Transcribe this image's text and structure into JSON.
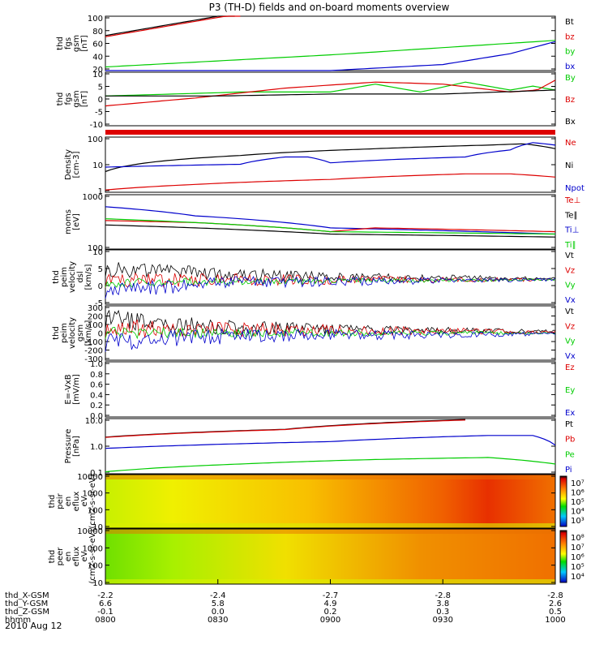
{
  "title": "P3 (TH-D) fields and on-board moments overview",
  "colors": {
    "black": "#000000",
    "red": "#dd0000",
    "green": "#00cc00",
    "blue": "#0000cc"
  },
  "chart_data": [
    {
      "type": "line",
      "ylabel": [
        "thd",
        "fgs",
        "gsm",
        "[nT]"
      ],
      "yticks": [
        "100",
        "80",
        "60",
        "40",
        "20"
      ],
      "ylim": [
        10,
        100
      ],
      "legend": [
        "Bt",
        "bz",
        "by",
        "bx"
      ],
      "series": [
        {
          "name": "Bt",
          "color": "black",
          "x": [
            0,
            0.25,
            0.29
          ],
          "y": [
            68,
            100,
            105
          ]
        },
        {
          "name": "bz",
          "color": "red",
          "x": [
            0,
            0.25,
            0.3
          ],
          "y": [
            66,
            98,
            104
          ]
        },
        {
          "name": "by",
          "color": "green",
          "x": [
            0,
            0.25,
            0.5,
            0.75,
            1
          ],
          "y": [
            16,
            26,
            36,
            48,
            60
          ]
        },
        {
          "name": "bx",
          "color": "blue",
          "x": [
            0,
            0.25,
            0.5,
            0.75,
            0.9,
            1
          ],
          "y": [
            3,
            5,
            10,
            20,
            38,
            58
          ]
        }
      ]
    },
    {
      "type": "line",
      "ylabel": [
        "thd",
        "fgs",
        "gsm",
        "[nT]"
      ],
      "yticks": [
        "10",
        "5",
        "0",
        "-5",
        "-10"
      ],
      "ylim": [
        -15,
        12
      ],
      "legend": [
        "By",
        "Bz",
        "Bx"
      ],
      "series": [
        {
          "name": "By",
          "color": "green",
          "x": [
            0,
            0.15,
            0.3,
            0.5,
            0.6,
            0.7,
            0.8,
            0.9,
            0.95,
            1
          ],
          "y": [
            0,
            1,
            2,
            2,
            6,
            2,
            7,
            3,
            5,
            3
          ]
        },
        {
          "name": "Bz",
          "color": "red",
          "x": [
            0,
            0.2,
            0.4,
            0.6,
            0.75,
            0.9,
            0.96,
            1
          ],
          "y": [
            -5,
            -1,
            4,
            7,
            6,
            2,
            3,
            8
          ]
        },
        {
          "name": "Bx",
          "color": "black",
          "x": [
            0,
            0.25,
            0.5,
            0.75,
            1
          ],
          "y": [
            0,
            0,
            1,
            1,
            3
          ]
        }
      ]
    },
    {
      "type": "area",
      "ylabel": [],
      "yticks": [],
      "legend": [],
      "series": []
    },
    {
      "type": "line",
      "yscale": "log",
      "ylabel": [
        "Density",
        "[cm-3]"
      ],
      "yticks": [
        "100",
        "10",
        "1"
      ],
      "ylim": [
        0.3,
        300
      ],
      "legend": [
        "Ne",
        "Ni",
        "Npot"
      ],
      "series": [
        {
          "name": "Ne",
          "color": "red",
          "x": [
            0,
            0.2,
            0.5,
            0.8,
            0.9,
            1
          ],
          "y": [
            0.4,
            0.8,
            1.5,
            3,
            3,
            2
          ]
        },
        {
          "name": "Ni",
          "color": "black",
          "x": [
            0,
            0.3,
            0.6,
            0.85,
            0.93,
            1
          ],
          "y": [
            4,
            30,
            70,
            110,
            130,
            70
          ]
        },
        {
          "name": "Npot",
          "color": "blue",
          "x": [
            0,
            0.3,
            0.4,
            0.45,
            0.5,
            0.8,
            0.9,
            0.95,
            1
          ],
          "y": [
            7,
            10,
            25,
            25,
            12,
            25,
            60,
            150,
            110
          ]
        }
      ]
    },
    {
      "type": "line",
      "yscale": "log",
      "ylabel": [
        "moms",
        "[eV]"
      ],
      "yticks": [
        "1000",
        "100"
      ],
      "ylim": [
        80,
        5000
      ],
      "legend": [
        "Te⊥",
        "Te∥",
        "Ti⊥",
        "Ti∥"
      ],
      "series": [
        {
          "name": "Ti⊥",
          "color": "blue",
          "x": [
            0,
            0.2,
            0.5,
            1
          ],
          "y": [
            2000,
            1000,
            400,
            250
          ]
        },
        {
          "name": "Te⊥",
          "color": "red",
          "x": [
            0,
            0.2,
            0.5,
            0.6,
            1
          ],
          "y": [
            700,
            600,
            300,
            400,
            300
          ]
        },
        {
          "name": "Ti∥",
          "color": "green",
          "x": [
            0,
            0.2,
            0.5,
            1
          ],
          "y": [
            800,
            600,
            300,
            250
          ]
        },
        {
          "name": "Te∥",
          "color": "black",
          "x": [
            0,
            0.2,
            0.5,
            1
          ],
          "y": [
            500,
            400,
            250,
            200
          ]
        }
      ]
    },
    {
      "type": "line",
      "ylabel": [
        "thd",
        "peim",
        "velocity",
        "dsl",
        "[km/s]"
      ],
      "yticks": [
        "10",
        "5",
        "0",
        "-5"
      ],
      "ylim": [
        -9,
        11
      ],
      "legend": [
        "Vt",
        "Vz",
        "Vy",
        "Vx"
      ],
      "series": [
        {
          "name": "Vt",
          "color": "black",
          "x": [
            0,
            0.3,
            0.5,
            1
          ],
          "y": [
            4,
            2,
            1,
            0.5
          ]
        },
        {
          "name": "Vz",
          "color": "red",
          "x": [
            0,
            1
          ],
          "y": [
            0,
            0
          ]
        },
        {
          "name": "Vy",
          "color": "green",
          "x": [
            0,
            1
          ],
          "y": [
            -1,
            0
          ]
        },
        {
          "name": "Vx",
          "color": "blue",
          "x": [
            0,
            0.3,
            1
          ],
          "y": [
            -4,
            -1,
            0
          ]
        }
      ]
    },
    {
      "type": "line",
      "ylabel": [
        "thd",
        "peim",
        "velocity",
        "gsm",
        "[km/s]"
      ],
      "yticks": [
        "300",
        "200",
        "100",
        "0",
        "-100",
        "-200",
        "-300"
      ],
      "ylim": [
        -300,
        300
      ],
      "legend": [
        "Vt",
        "Vz",
        "Vy",
        "Vx"
      ],
      "series": [
        {
          "name": "Vt",
          "color": "black",
          "x": [
            0,
            0.3,
            0.6,
            1
          ],
          "y": [
            150,
            60,
            30,
            20
          ]
        },
        {
          "name": "Vz",
          "color": "red",
          "x": [
            0,
            1
          ],
          "y": [
            50,
            10
          ]
        },
        {
          "name": "Vy",
          "color": "green",
          "x": [
            0,
            1
          ],
          "y": [
            0,
            0
          ]
        },
        {
          "name": "Vx",
          "color": "blue",
          "x": [
            0,
            0.3,
            1
          ],
          "y": [
            -100,
            -30,
            -10
          ]
        }
      ]
    },
    {
      "type": "line",
      "ylabel": [
        "E=-VxB",
        "[mV/m]"
      ],
      "yticks": [
        "1.0",
        "0.8",
        "0.6",
        "0.4",
        "0.2",
        "0.0"
      ],
      "ylim": [
        0,
        1
      ],
      "legend": [
        "Ez",
        "Ey",
        "Ex"
      ],
      "series": []
    },
    {
      "type": "line",
      "yscale": "log",
      "ylabel": [
        "Pressure",
        "[nPa]"
      ],
      "yticks": [
        "10.0",
        "1.0",
        "0.1"
      ],
      "ylim": [
        0.04,
        20
      ],
      "legend": [
        "Pt",
        "Pb",
        "Pe",
        "Pi"
      ],
      "series": [
        {
          "name": "Pt",
          "color": "black",
          "x": [
            0,
            0.4,
            0.8
          ],
          "y": [
            2.5,
            6,
            18
          ]
        },
        {
          "name": "Pb",
          "color": "red",
          "x": [
            0,
            0.4,
            0.8
          ],
          "y": [
            2.4,
            5.8,
            17
          ]
        },
        {
          "name": "Pi",
          "color": "blue",
          "x": [
            0,
            0.5,
            0.85,
            0.95,
            1
          ],
          "y": [
            0.7,
            1.5,
            3,
            3,
            1
          ]
        },
        {
          "name": "Pe",
          "color": "green",
          "x": [
            0,
            0.3,
            0.6,
            0.85,
            1
          ],
          "y": [
            0.05,
            0.12,
            0.2,
            0.25,
            0.12
          ]
        }
      ]
    },
    {
      "type": "heatmap",
      "ylabel": [
        "thd",
        "peir",
        "en",
        "eflux",
        "eV",
        "(cm2-s-sr-eV)"
      ],
      "yticks": [
        "10000",
        "1000",
        "100",
        "10"
      ],
      "colorbar": {
        "ticks": [
          "10⁷",
          "10⁶",
          "10⁵",
          "10⁴",
          "10³"
        ]
      }
    },
    {
      "type": "heatmap",
      "ylabel": [
        "thd",
        "peer",
        "en",
        "eflux",
        "eV",
        "(cm2-s-sr-eV)"
      ],
      "yticks": [
        "10000",
        "1000",
        "100",
        "10"
      ],
      "colorbar": {
        "ticks": [
          "10⁸",
          "10⁷",
          "10⁶",
          "10⁵",
          "10⁴"
        ]
      }
    }
  ],
  "xaxis": {
    "rows": [
      {
        "label": "thd_X-GSM",
        "values": [
          "-2.2",
          "-2.4",
          "-2.7",
          "-2.8",
          "-2.8"
        ]
      },
      {
        "label": "thd_Y-GSM",
        "values": [
          "6.6",
          "5.8",
          "4.9",
          "3.8",
          "2.6"
        ]
      },
      {
        "label": "thd_Z-GSM",
        "values": [
          "-0.1",
          "0.0",
          "0.2",
          "0.3",
          "0.5"
        ]
      },
      {
        "label": "hhmm",
        "values": [
          "0800",
          "0830",
          "0900",
          "0930",
          "1000"
        ]
      }
    ],
    "date": "2010 Aug 12"
  }
}
